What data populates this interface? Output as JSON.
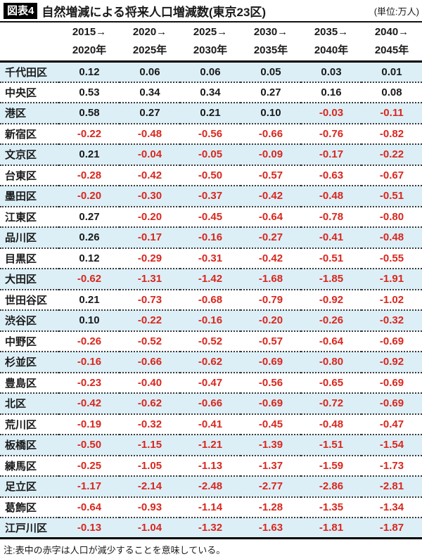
{
  "header": {
    "figure_label": "図表4",
    "title": "自然増減による将来人口増減数(東京23区)",
    "unit": "(単位:万人)"
  },
  "chart_data": {
    "type": "table",
    "title": "自然増減による将来人口増減数(東京23区)",
    "unit": "万人",
    "column_headers": [
      [
        "2015→",
        "2020年"
      ],
      [
        "2020→",
        "2025年"
      ],
      [
        "2025→",
        "2030年"
      ],
      [
        "2030→",
        "2035年"
      ],
      [
        "2035→",
        "2040年"
      ],
      [
        "2040→",
        "2045年"
      ]
    ],
    "rows": [
      {
        "ward": "千代田区",
        "values": [
          0.12,
          0.06,
          0.06,
          0.05,
          0.03,
          0.01
        ]
      },
      {
        "ward": "中央区",
        "values": [
          0.53,
          0.34,
          0.34,
          0.27,
          0.16,
          0.08
        ]
      },
      {
        "ward": "港区",
        "values": [
          0.58,
          0.27,
          0.21,
          0.1,
          -0.03,
          -0.11
        ]
      },
      {
        "ward": "新宿区",
        "values": [
          -0.22,
          -0.48,
          -0.56,
          -0.66,
          -0.76,
          -0.82
        ]
      },
      {
        "ward": "文京区",
        "values": [
          0.21,
          -0.04,
          -0.05,
          -0.09,
          -0.17,
          -0.22
        ]
      },
      {
        "ward": "台東区",
        "values": [
          -0.28,
          -0.42,
          -0.5,
          -0.57,
          -0.63,
          -0.67
        ]
      },
      {
        "ward": "墨田区",
        "values": [
          -0.2,
          -0.3,
          -0.37,
          -0.42,
          -0.48,
          -0.51
        ]
      },
      {
        "ward": "江東区",
        "values": [
          0.27,
          -0.2,
          -0.45,
          -0.64,
          -0.78,
          -0.8
        ]
      },
      {
        "ward": "品川区",
        "values": [
          0.26,
          -0.17,
          -0.16,
          -0.27,
          -0.41,
          -0.48
        ]
      },
      {
        "ward": "目黒区",
        "values": [
          0.12,
          -0.29,
          -0.31,
          -0.42,
          -0.51,
          -0.55
        ]
      },
      {
        "ward": "大田区",
        "values": [
          -0.62,
          -1.31,
          -1.42,
          -1.68,
          -1.85,
          -1.91
        ]
      },
      {
        "ward": "世田谷区",
        "values": [
          0.21,
          -0.73,
          -0.68,
          -0.79,
          -0.92,
          -1.02
        ]
      },
      {
        "ward": "渋谷区",
        "values": [
          0.1,
          -0.22,
          -0.16,
          -0.2,
          -0.26,
          -0.32
        ]
      },
      {
        "ward": "中野区",
        "values": [
          -0.26,
          -0.52,
          -0.52,
          -0.57,
          -0.64,
          -0.69
        ]
      },
      {
        "ward": "杉並区",
        "values": [
          -0.16,
          -0.66,
          -0.62,
          -0.69,
          -0.8,
          -0.92
        ]
      },
      {
        "ward": "豊島区",
        "values": [
          -0.23,
          -0.4,
          -0.47,
          -0.56,
          -0.65,
          -0.69
        ]
      },
      {
        "ward": "北区",
        "values": [
          -0.42,
          -0.62,
          -0.66,
          -0.69,
          -0.72,
          -0.69
        ]
      },
      {
        "ward": "荒川区",
        "values": [
          -0.19,
          -0.32,
          -0.41,
          -0.45,
          -0.48,
          -0.47
        ]
      },
      {
        "ward": "板橋区",
        "values": [
          -0.5,
          -1.15,
          -1.21,
          -1.39,
          -1.51,
          -1.54
        ]
      },
      {
        "ward": "練馬区",
        "values": [
          -0.25,
          -1.05,
          -1.13,
          -1.37,
          -1.59,
          -1.73
        ]
      },
      {
        "ward": "足立区",
        "values": [
          -1.17,
          -2.14,
          -2.48,
          -2.77,
          -2.86,
          -2.81
        ]
      },
      {
        "ward": "葛飾区",
        "values": [
          -0.64,
          -0.93,
          -1.14,
          -1.28,
          -1.35,
          -1.34
        ]
      },
      {
        "ward": "江戸川区",
        "values": [
          -0.13,
          -1.04,
          -1.32,
          -1.63,
          -1.81,
          -1.87
        ]
      }
    ],
    "layout": {
      "negative_values_in_red": true,
      "row_stripe": "alternate"
    }
  },
  "note": "注:表中の赤字は人口が減少することを意味している。",
  "colors": {
    "row_stripe": "#dceff7",
    "negative_red": "#d9271e",
    "text": "#1a1a1a",
    "rule": "#111111"
  }
}
